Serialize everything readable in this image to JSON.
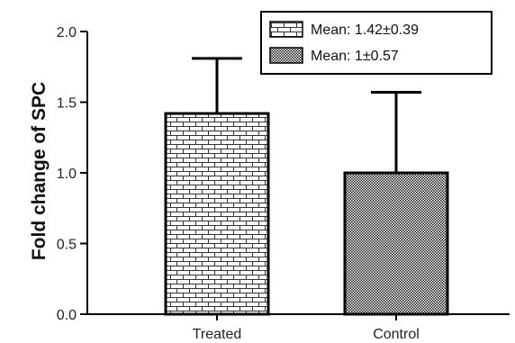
{
  "chart_data": {
    "type": "bar",
    "categories": [
      "Treated",
      "Control"
    ],
    "values": [
      1.42,
      1.0
    ],
    "error": [
      0.39,
      0.57
    ],
    "ylabel": "Fold change of SPC",
    "xlabel": "",
    "ylim": [
      0,
      2.0
    ],
    "yticks": [
      0.0,
      0.5,
      1.0,
      1.5,
      2.0
    ],
    "ytick_labels": [
      "0.0",
      "0.5",
      "1.0",
      "1.5",
      "2.0"
    ],
    "grid": false,
    "legend": {
      "placement": "top-right",
      "entries": [
        "Mean: 1.42±0.39",
        "Mean: 1±0.57"
      ]
    },
    "patterns": [
      "brick",
      "dots"
    ],
    "colors": {
      "stroke": "#000000",
      "bar_fill": "#ffffff",
      "pattern": "#222222"
    }
  }
}
